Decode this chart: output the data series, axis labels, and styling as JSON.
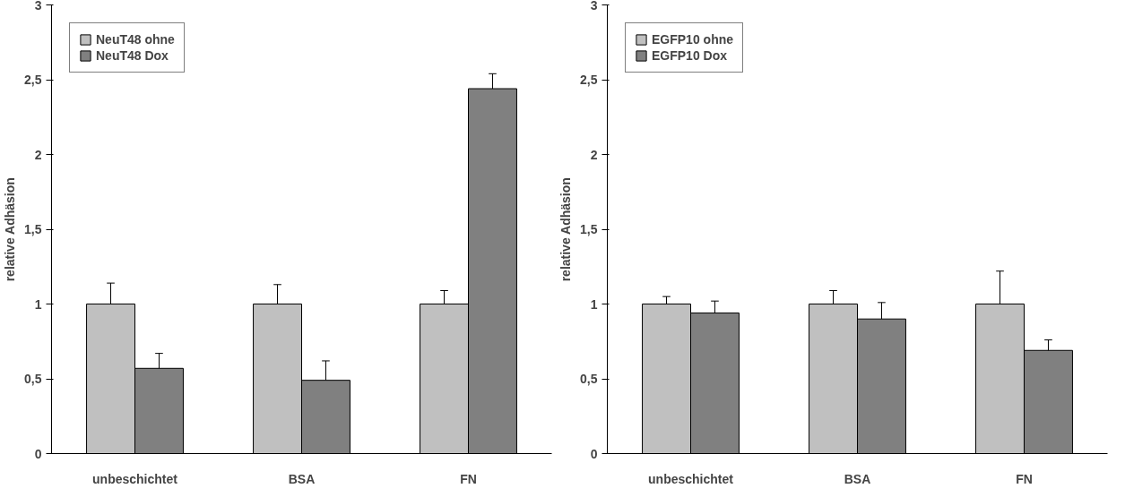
{
  "chart_data": [
    {
      "type": "bar",
      "ylabel": "relative Adhäsion",
      "categories": [
        "unbeschichtet",
        "BSA",
        "FN"
      ],
      "ylim": [
        0,
        3
      ],
      "yticks": [
        0,
        {
          "value": 0.5,
          "label": "0,5"
        },
        1,
        {
          "value": 1.5,
          "label": "1,5"
        },
        2,
        {
          "value": 2.5,
          "label": "2,5"
        },
        3
      ],
      "grid": false,
      "legend": "top left",
      "series": [
        {
          "name": "NeuT48 ohne",
          "color": "#c0c0c0",
          "values": [
            1,
            1,
            1
          ],
          "errors": [
            [
              1,
              1.14
            ],
            [
              1,
              1.13
            ],
            [
              1,
              1.09
            ]
          ]
        },
        {
          "name": "NeuT48 Dox",
          "color": "#808080",
          "values": [
            0.57,
            0.49,
            2.44
          ],
          "errors": [
            [
              0.57,
              0.67
            ],
            [
              0.49,
              0.62
            ],
            [
              2.44,
              2.54
            ]
          ]
        }
      ]
    },
    {
      "type": "bar",
      "ylabel": "relative Adhäsion",
      "categories": [
        "unbeschichtet",
        "BSA",
        "FN"
      ],
      "ylim": [
        0,
        3
      ],
      "yticks": [
        0,
        {
          "value": 0.5,
          "label": "0,5"
        },
        1,
        {
          "value": 1.5,
          "label": "1,5"
        },
        2,
        {
          "value": 2.5,
          "label": "2,5"
        },
        3
      ],
      "grid": false,
      "legend": "top left",
      "series": [
        {
          "name": "EGFP10 ohne",
          "color": "#c0c0c0",
          "values": [
            1,
            1,
            1
          ],
          "errors": [
            [
              1,
              1.05
            ],
            [
              1,
              1.09
            ],
            [
              1,
              1.22
            ]
          ]
        },
        {
          "name": "EGFP10 Dox",
          "color": "#808080",
          "values": [
            0.94,
            0.9,
            0.69
          ],
          "errors": [
            [
              0.94,
              1.02
            ],
            [
              0.9,
              1.01
            ],
            [
              0.69,
              0.76
            ]
          ]
        }
      ]
    }
  ]
}
